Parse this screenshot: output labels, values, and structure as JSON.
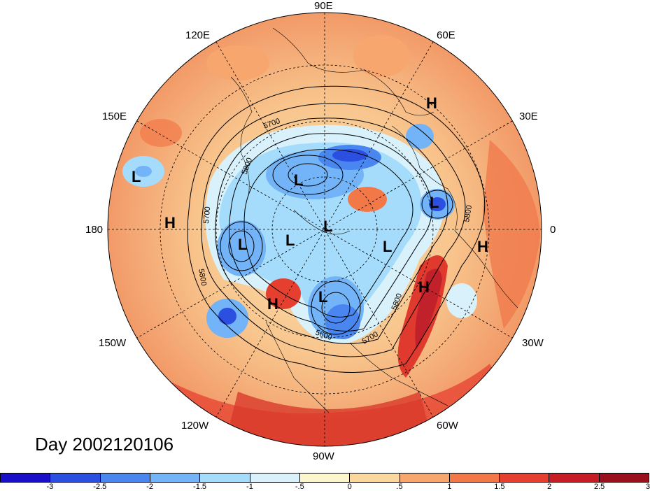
{
  "day_label": "Day 2002120106",
  "longitude_labels": {
    "top": "90E",
    "bottom": "90W",
    "left": "180",
    "right": "0",
    "upper_left_1": "120E",
    "upper_left_2": "150E",
    "upper_right_1": "60E",
    "upper_right_2": "30E",
    "lower_left_1": "150W",
    "lower_left_2": "120W",
    "lower_right_1": "30W",
    "lower_right_2": "60W"
  },
  "pressure_centers": [
    {
      "id": "H-top",
      "label": "H"
    },
    {
      "id": "L-far-left",
      "label": "L"
    },
    {
      "id": "H-left",
      "label": "H"
    },
    {
      "id": "L-upper-mid",
      "label": "L"
    },
    {
      "id": "L-right-upper",
      "label": "L"
    },
    {
      "id": "L-center-1",
      "label": "L"
    },
    {
      "id": "L-center-2",
      "label": "L"
    },
    {
      "id": "L-left-mid",
      "label": "L"
    },
    {
      "id": "L-center-right",
      "label": "L"
    },
    {
      "id": "H-right",
      "label": "H"
    },
    {
      "id": "H-lower-right",
      "label": "H"
    },
    {
      "id": "H-lower-left",
      "label": "H"
    },
    {
      "id": "L-lower-center",
      "label": "L"
    }
  ],
  "contour_labels": {
    "c1": "5700",
    "c2": "5800",
    "c3": "5700",
    "c4": "5800",
    "c5": "5800",
    "c6": "5700",
    "c7": "5600",
    "c8": "5800"
  },
  "colorbar": {
    "colors": [
      "#1a0fc9",
      "#2b4fe0",
      "#4a86f0",
      "#72b4f7",
      "#a6dcfb",
      "#d8f1fb",
      "#fbf6cc",
      "#fad79c",
      "#f7a66e",
      "#f27848",
      "#e5402f",
      "#c61d24",
      "#9a0f1c"
    ],
    "tick_labels": [
      "-3",
      "-2.5",
      "-2",
      "-1.5",
      "-1",
      "-.5",
      "0",
      ".5",
      "1",
      "1.5",
      "2",
      "2.5",
      "3"
    ]
  }
}
